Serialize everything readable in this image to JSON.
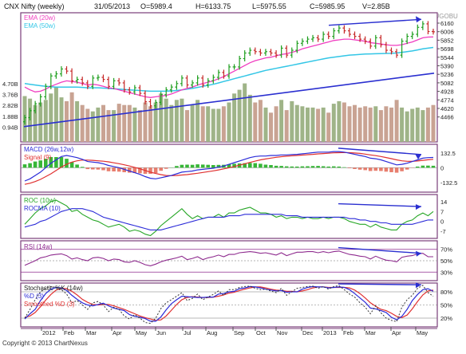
{
  "header": {
    "symbol": "CNX Nifty (weekly)",
    "date": "31/05/2013",
    "open": "O=5989.4",
    "high": "H=6133.75",
    "low": "L=5975.55",
    "close": "C=5985.95",
    "volume": "V=2.85B",
    "credit": "Charted By MOBUGOBU"
  },
  "footer": {
    "copyright": "Copyright © 2013 ChartNexus"
  },
  "colors": {
    "frame": "#7a3e7a",
    "up": "#1e9e1e",
    "down": "#c62828",
    "ema20": "#f03cc0",
    "ema50": "#33c6e6",
    "trend": "#2a2fd0",
    "vol_up": "#9fb488",
    "vol_down": "#c9a393",
    "macd": "#2b2bd8",
    "signal": "#e03030",
    "hist_up": "#37b637",
    "hist_down": "#e87e6e",
    "roc": "#26a626",
    "rocma": "#2b2bd8",
    "rsi": "#8e2a8e",
    "stoch_k": "#333333",
    "stoch_d": "#2b2bd8",
    "stoch_sd": "#e03030"
  },
  "chart_data": [
    {
      "type": "candlestick",
      "panel": "price",
      "title": "CNX Nifty (weekly)",
      "legend": [
        "EMA (20w)",
        "EMA (50w)"
      ],
      "y_ticks": [
        "6160",
        "6006",
        "5852",
        "5698",
        "5544",
        "5390",
        "5236",
        "5082",
        "4928",
        "4774",
        "4620",
        "4466"
      ],
      "ylim": [
        4400,
        6260
      ],
      "x_ticks": [
        "2012",
        "Feb",
        "Mar",
        "Apr",
        "May",
        "Jun",
        "Jul",
        "Aug",
        "Sep",
        "Oct",
        "Nov",
        "Dec",
        "2013",
        "Feb",
        "Mar",
        "Apr",
        "May"
      ],
      "close": [
        4750,
        4850,
        4950,
        5050,
        5200,
        5350,
        5380,
        5450,
        5420,
        5280,
        5300,
        5250,
        5200,
        5320,
        5330,
        5300,
        5200,
        5280,
        5250,
        5150,
        5120,
        5180,
        5100,
        4980,
        4920,
        4970,
        5080,
        5150,
        5190,
        5240,
        5320,
        5220,
        5250,
        5320,
        5220,
        5280,
        5330,
        5400,
        5350,
        5480,
        5480,
        5600,
        5680,
        5720,
        5700,
        5680,
        5700,
        5680,
        5650,
        5750,
        5650,
        5720,
        5820,
        5850,
        5880,
        5900,
        5880,
        5950,
        5920,
        6000,
        6040,
        6000,
        5950,
        5920,
        5880,
        5850,
        5780,
        5900,
        5800,
        5720,
        5700,
        5650,
        5850,
        5920,
        5950,
        6050,
        6100,
        5990,
        5986
      ],
      "ema20": [
        5190,
        5150,
        5120,
        5130,
        5160,
        5200,
        5230,
        5260,
        5280,
        5270,
        5260,
        5240,
        5220,
        5230,
        5220,
        5200,
        5180,
        5170,
        5150,
        5130,
        5110,
        5090,
        5070,
        5050,
        5040,
        5050,
        5060,
        5070,
        5090,
        5120,
        5150,
        5170,
        5190,
        5220,
        5240,
        5260,
        5280,
        5310,
        5340,
        5380,
        5420,
        5460,
        5500,
        5540,
        5570,
        5590,
        5610,
        5620,
        5640,
        5660,
        5670,
        5690,
        5710,
        5740,
        5760,
        5780,
        5800,
        5820,
        5840,
        5860,
        5870,
        5880,
        5880,
        5870,
        5860,
        5850,
        5830,
        5820,
        5810,
        5800,
        5790,
        5790,
        5800,
        5820,
        5840,
        5870,
        5900,
        5910,
        5912
      ],
      "ema50": [
        5240,
        5230,
        5220,
        5210,
        5200,
        5195,
        5190,
        5190,
        5190,
        5190,
        5190,
        5185,
        5180,
        5180,
        5180,
        5175,
        5170,
        5165,
        5160,
        5155,
        5150,
        5145,
        5140,
        5135,
        5130,
        5130,
        5130,
        5130,
        5135,
        5140,
        5150,
        5160,
        5170,
        5185,
        5200,
        5215,
        5230,
        5250,
        5270,
        5290,
        5310,
        5330,
        5350,
        5370,
        5390,
        5410,
        5430,
        5445,
        5460,
        5475,
        5490,
        5505,
        5520,
        5535,
        5550,
        5565,
        5580,
        5595,
        5610,
        5620,
        5630,
        5640,
        5650,
        5655,
        5660,
        5665,
        5668,
        5670,
        5672,
        5674,
        5676,
        5680,
        5690,
        5700,
        5710,
        5725,
        5740,
        5750,
        5760
      ]
    },
    {
      "type": "bar",
      "panel": "volume",
      "y_ticks": [
        "4.70B",
        "3.76B",
        "2.82B",
        "1.88B",
        "0.94B"
      ],
      "ylim": [
        0,
        5.2
      ],
      "values": [
        3.6,
        3.4,
        2.9,
        3.1,
        3.3,
        3.8,
        4.3,
        3.5,
        3.2,
        3.9,
        3.2,
        2.9,
        2.6,
        2.4,
        2.7,
        2.9,
        2.5,
        2.5,
        3.0,
        2.9,
        2.9,
        2.7,
        2.5,
        3.1,
        2.8,
        3.1,
        3.8,
        3.4,
        2.9,
        3.3,
        3.4,
        2.5,
        2.9,
        3.3,
        2.8,
        2.8,
        2.6,
        2.6,
        2.8,
        3.1,
        3.8,
        4.1,
        4.6,
        3.7,
        3.1,
        3.3,
        2.7,
        2.3,
        2.8,
        3.3,
        2.5,
        3.2,
        2.9,
        2.8,
        2.7,
        2.7,
        2.6,
        2.7,
        2.3,
        3.0,
        3.2,
        3.1,
        2.8,
        2.9,
        2.7,
        2.8,
        2.7,
        2.8,
        2.5,
        2.8,
        2.7,
        3.3,
        2.7,
        2.4,
        2.6,
        2.7,
        2.5,
        2.7,
        2.9
      ]
    },
    {
      "type": "line",
      "panel": "macd",
      "legend": [
        "MACD (26w,12w)",
        "Signal (9)"
      ],
      "y_ticks": [
        "132.5",
        "0",
        "-132.5"
      ],
      "ylim": [
        -220,
        210
      ],
      "macd": [
        -120,
        -100,
        -70,
        -40,
        0,
        40,
        70,
        100,
        110,
        100,
        90,
        75,
        55,
        50,
        45,
        35,
        20,
        10,
        0,
        -15,
        -30,
        -45,
        -60,
        -80,
        -95,
        -100,
        -90,
        -80,
        -70,
        -55,
        -40,
        -35,
        -30,
        -20,
        -15,
        -10,
        -5,
        5,
        15,
        30,
        45,
        60,
        75,
        90,
        100,
        105,
        105,
        110,
        110,
        115,
        115,
        118,
        120,
        125,
        130,
        135,
        140,
        140,
        140,
        145,
        145,
        140,
        130,
        120,
        110,
        100,
        85,
        80,
        70,
        55,
        40,
        25,
        30,
        40,
        55,
        70,
        85,
        90,
        92
      ],
      "signal": [
        -150,
        -140,
        -125,
        -105,
        -80,
        -55,
        -25,
        5,
        30,
        50,
        62,
        68,
        68,
        66,
        62,
        58,
        52,
        44,
        36,
        26,
        15,
        3,
        -10,
        -25,
        -40,
        -52,
        -62,
        -70,
        -72,
        -70,
        -66,
        -62,
        -56,
        -50,
        -43,
        -36,
        -29,
        -20,
        -11,
        -1,
        10,
        22,
        35,
        47,
        59,
        70,
        78,
        86,
        93,
        99,
        103,
        107,
        110,
        113,
        117,
        120,
        124,
        127,
        130,
        133,
        135,
        136,
        135,
        132,
        128,
        122,
        115,
        108,
        100,
        91,
        81,
        70,
        62,
        57,
        57,
        60,
        66,
        71,
        75
      ],
      "histogram": [
        30,
        40,
        55,
        65,
        80,
        95,
        95,
        95,
        80,
        50,
        28,
        7,
        -13,
        -16,
        -17,
        -23,
        -32,
        -34,
        -36,
        -41,
        -45,
        -48,
        -50,
        -55,
        -55,
        -48,
        -28,
        -10,
        2,
        15,
        26,
        27,
        26,
        30,
        28,
        26,
        24,
        25,
        26,
        31,
        35,
        38,
        40,
        43,
        41,
        35,
        27,
        24,
        17,
        16,
        12,
        11,
        10,
        12,
        13,
        15,
        16,
        13,
        10,
        12,
        10,
        4,
        -5,
        -12,
        -18,
        -22,
        -30,
        -28,
        -30,
        -36,
        -41,
        -45,
        -32,
        -17,
        -2,
        10,
        19,
        19,
        17
      ]
    },
    {
      "type": "line",
      "panel": "roc",
      "legend": [
        "ROC (10w)",
        "ROCMA (10)"
      ],
      "y_ticks": [
        "14",
        "7",
        "0",
        "-7"
      ],
      "ylim": [
        -12,
        19
      ],
      "roc": [
        -2,
        2,
        6,
        9,
        11,
        14,
        15,
        13,
        11,
        7,
        8,
        5,
        3,
        1,
        0,
        -2,
        -4,
        -3,
        -2,
        -4,
        -7,
        -6,
        -7,
        -9,
        -10,
        -7,
        -3,
        0,
        3,
        6,
        9,
        5,
        2,
        4,
        2,
        3,
        3,
        5,
        3,
        6,
        6,
        8,
        9,
        10,
        8,
        6,
        6,
        5,
        3,
        4,
        2,
        3,
        3,
        2,
        3,
        2,
        2,
        3,
        2,
        3,
        3,
        2,
        0,
        -1,
        -2,
        -2,
        -4,
        -2,
        -4,
        -5,
        -6,
        -6,
        -2,
        0,
        1,
        4,
        6,
        4,
        7
      ],
      "rocma": [
        -4,
        -3,
        -2,
        0,
        1,
        3,
        5,
        7,
        8,
        9,
        9,
        9,
        8,
        7,
        5,
        3,
        2,
        1,
        0,
        -1,
        -2,
        -3,
        -4,
        -5,
        -6,
        -6,
        -6,
        -5,
        -4,
        -3,
        -2,
        -1,
        0,
        1,
        2,
        3,
        3,
        3,
        3,
        4,
        4,
        4,
        5,
        5,
        5,
        5,
        5,
        5,
        5,
        5,
        4,
        4,
        4,
        3,
        3,
        3,
        3,
        3,
        3,
        3,
        3,
        3,
        2,
        2,
        1,
        1,
        0,
        0,
        -1,
        -1,
        -2,
        -2,
        -2,
        -2,
        -2,
        -1,
        0,
        1,
        1
      ]
    },
    {
      "type": "line",
      "panel": "rsi",
      "legend": [
        "RSI (14w)"
      ],
      "y_ticks": [
        "70%",
        "50%",
        "30%"
      ],
      "ylim": [
        15,
        85
      ],
      "rsi": [
        42,
        46,
        50,
        55,
        57,
        60,
        61,
        62,
        59,
        53,
        55,
        52,
        50,
        55,
        56,
        54,
        50,
        53,
        52,
        48,
        47,
        50,
        47,
        43,
        41,
        44,
        48,
        51,
        53,
        55,
        58,
        52,
        54,
        57,
        52,
        55,
        57,
        60,
        57,
        61,
        61,
        64,
        65,
        66,
        65,
        63,
        64,
        62,
        60,
        64,
        59,
        62,
        65,
        65,
        66,
        66,
        64,
        66,
        64,
        66,
        67,
        64,
        61,
        60,
        58,
        57,
        53,
        58,
        54,
        51,
        50,
        48,
        56,
        58,
        59,
        62,
        63,
        57,
        57
      ]
    },
    {
      "type": "line",
      "panel": "stochastic",
      "legend": [
        "Stochastic %K (14w)",
        "%D (3)",
        "Smoothed %D (3)"
      ],
      "y_ticks": [
        "80%",
        "50%",
        "20%"
      ],
      "ylim": [
        0,
        100
      ],
      "k": [
        20,
        40,
        62,
        80,
        88,
        92,
        90,
        85,
        75,
        55,
        60,
        50,
        40,
        55,
        58,
        50,
        35,
        45,
        40,
        25,
        18,
        28,
        20,
        10,
        8,
        20,
        42,
        55,
        62,
        70,
        78,
        60,
        65,
        75,
        62,
        68,
        74,
        82,
        72,
        85,
        85,
        90,
        92,
        93,
        88,
        85,
        86,
        82,
        78,
        88,
        72,
        80,
        88,
        90,
        92,
        93,
        88,
        92,
        86,
        92,
        94,
        85,
        75,
        68,
        55,
        45,
        30,
        48,
        32,
        20,
        15,
        12,
        45,
        62,
        72,
        88,
        95,
        78,
        70
      ],
      "d": [
        18,
        30,
        40,
        60,
        76,
        86,
        90,
        89,
        83,
        72,
        63,
        55,
        50,
        48,
        51,
        54,
        48,
        43,
        40,
        37,
        28,
        24,
        22,
        19,
        13,
        13,
        23,
        39,
        53,
        62,
        70,
        69,
        68,
        67,
        67,
        68,
        68,
        75,
        76,
        80,
        81,
        87,
        89,
        92,
        91,
        89,
        86,
        84,
        82,
        83,
        79,
        80,
        80,
        86,
        90,
        92,
        91,
        91,
        89,
        90,
        91,
        90,
        85,
        76,
        66,
        56,
        43,
        41,
        37,
        33,
        22,
        16,
        24,
        40,
        60,
        74,
        85,
        87,
        81
      ],
      "sd": [
        22,
        25,
        33,
        46,
        61,
        74,
        84,
        88,
        87,
        81,
        73,
        63,
        56,
        51,
        50,
        51,
        51,
        48,
        44,
        40,
        35,
        30,
        25,
        21,
        18,
        15,
        16,
        25,
        38,
        51,
        62,
        67,
        69,
        68,
        67,
        67,
        68,
        70,
        73,
        77,
        79,
        83,
        86,
        89,
        91,
        91,
        89,
        86,
        84,
        83,
        81,
        81,
        80,
        82,
        85,
        89,
        91,
        91,
        90,
        90,
        90,
        90,
        89,
        84,
        76,
        66,
        55,
        47,
        40,
        37,
        31,
        24,
        21,
        27,
        41,
        58,
        73,
        82,
        84
      ]
    }
  ]
}
